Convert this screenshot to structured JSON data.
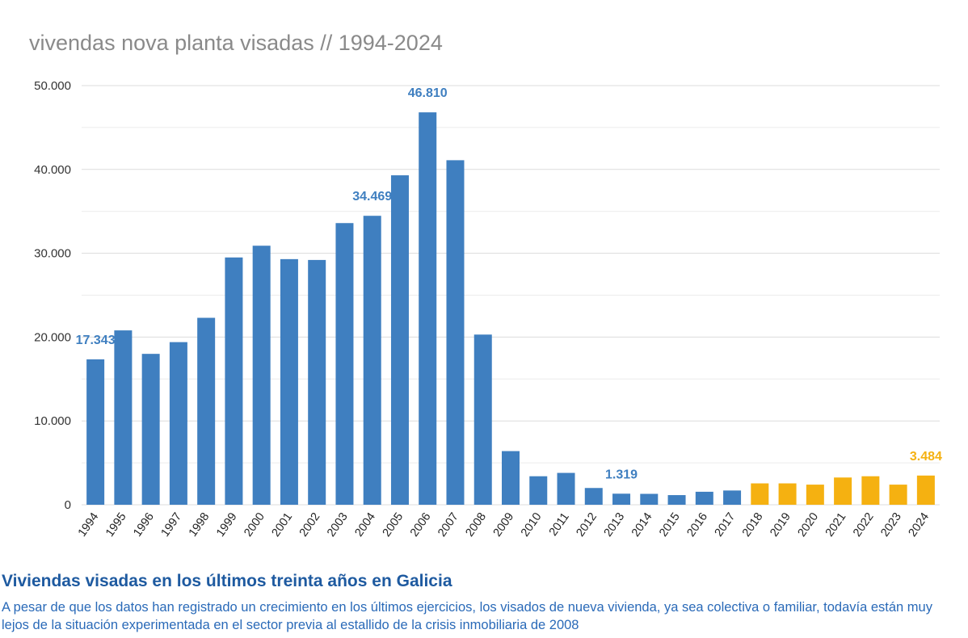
{
  "chart_data": {
    "type": "bar",
    "title": "vivendas nova planta visadas // 1994-2024",
    "xlabel": "",
    "ylabel": "",
    "ylim": [
      0,
      50000
    ],
    "y_ticks": [
      0,
      10000,
      20000,
      30000,
      40000,
      50000
    ],
    "y_tick_labels": [
      "0",
      "10.000",
      "20.000",
      "30.000",
      "40.000",
      "50.000"
    ],
    "grid": true,
    "categories": [
      "1994",
      "1995",
      "1996",
      "1997",
      "1998",
      "1999",
      "2000",
      "2001",
      "2002",
      "2003",
      "2004",
      "2005",
      "2006",
      "2007",
      "2008",
      "2009",
      "2010",
      "2011",
      "2012",
      "2013",
      "2014",
      "2015",
      "2016",
      "2017",
      "2018",
      "2019",
      "2020",
      "2021",
      "2022",
      "2023",
      "2024"
    ],
    "values": [
      17343,
      20800,
      18000,
      19400,
      22300,
      29500,
      30900,
      29300,
      29200,
      33600,
      34469,
      39300,
      46810,
      41100,
      20300,
      6400,
      3400,
      3800,
      2000,
      1319,
      1300,
      1150,
      1550,
      1700,
      2550,
      2550,
      2400,
      3250,
      3400,
      2400,
      3484
    ],
    "bar_colors": [
      "#3f7fc0",
      "#3f7fc0",
      "#3f7fc0",
      "#3f7fc0",
      "#3f7fc0",
      "#3f7fc0",
      "#3f7fc0",
      "#3f7fc0",
      "#3f7fc0",
      "#3f7fc0",
      "#3f7fc0",
      "#3f7fc0",
      "#3f7fc0",
      "#3f7fc0",
      "#3f7fc0",
      "#3f7fc0",
      "#3f7fc0",
      "#3f7fc0",
      "#3f7fc0",
      "#3f7fc0",
      "#3f7fc0",
      "#3f7fc0",
      "#3f7fc0",
      "#3f7fc0",
      "#f5b111",
      "#f5b111",
      "#f5b111",
      "#f5b111",
      "#f5b111",
      "#f5b111",
      "#f5b111"
    ],
    "annotations": [
      {
        "category": "1994",
        "label": "17.343",
        "color": "#3f7fc0"
      },
      {
        "category": "2004",
        "label": "34.469",
        "color": "#3f7fc0"
      },
      {
        "category": "2006",
        "label": "46.810",
        "color": "#3f7fc0"
      },
      {
        "category": "2013",
        "label": "1.319",
        "color": "#3f7fc0"
      },
      {
        "category": "2024",
        "label": "3.484",
        "color": "#f5b111"
      }
    ]
  },
  "caption": {
    "title": "Viviendas visadas en los últimos treinta años en Galicia",
    "text": "A pesar de que los datos han registrado un crecimiento en los últimos ejercicios, los visados de nueva vivienda, ya sea colectiva o familiar, todavía están muy lejos de la situación experimentada en el sector previa al estallido de la crisis inmobiliaria de 2008"
  },
  "colors": {
    "primary_bar": "#3f7fc0",
    "highlight_bar": "#f5b111",
    "gridline": "#e0e0e0",
    "caption_title": "#1e5aa0",
    "caption_text": "#2a6ab8"
  }
}
